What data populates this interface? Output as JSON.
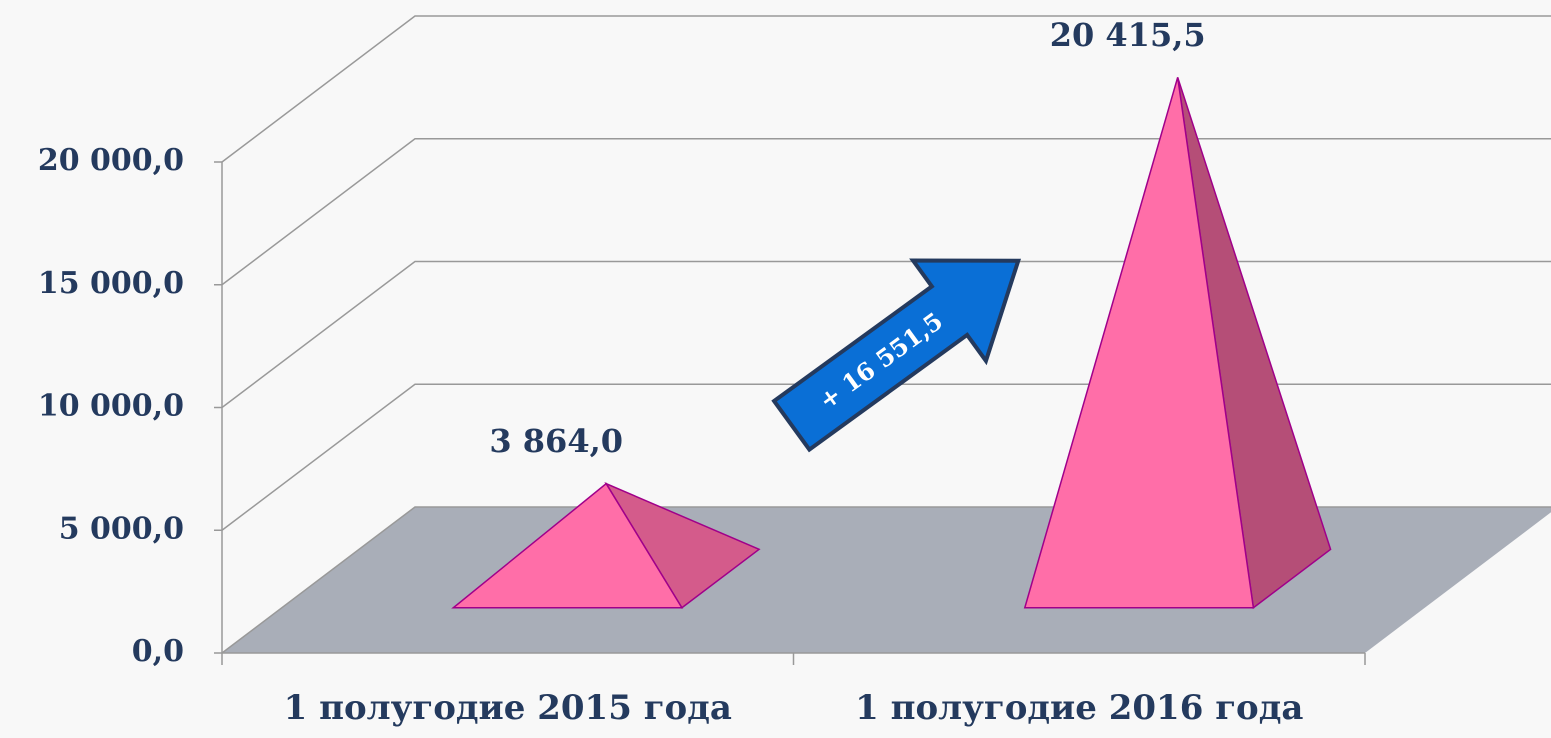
{
  "chart_data": {
    "type": "pyramid3d",
    "categories": [
      "1 полугодие 2015 года",
      "1 полугодие 2016 года"
    ],
    "values": [
      3864.0,
      20415.5
    ],
    "value_labels": [
      "3 864,0",
      "20 415,5"
    ],
    "color": "#ff6ea8",
    "ylim": [
      0,
      20000
    ],
    "yticks": [
      {
        "value": 0,
        "label": "0,0"
      },
      {
        "value": 5000,
        "label": "5 000,0"
      },
      {
        "value": 10000,
        "label": "10 000,0"
      },
      {
        "value": 15000,
        "label": "15 000,0"
      },
      {
        "value": 20000,
        "label": "20 000,0"
      }
    ],
    "grid": true,
    "annotations": [
      {
        "text": "+ 16 551,5",
        "color": "#0a6fd6"
      }
    ]
  }
}
